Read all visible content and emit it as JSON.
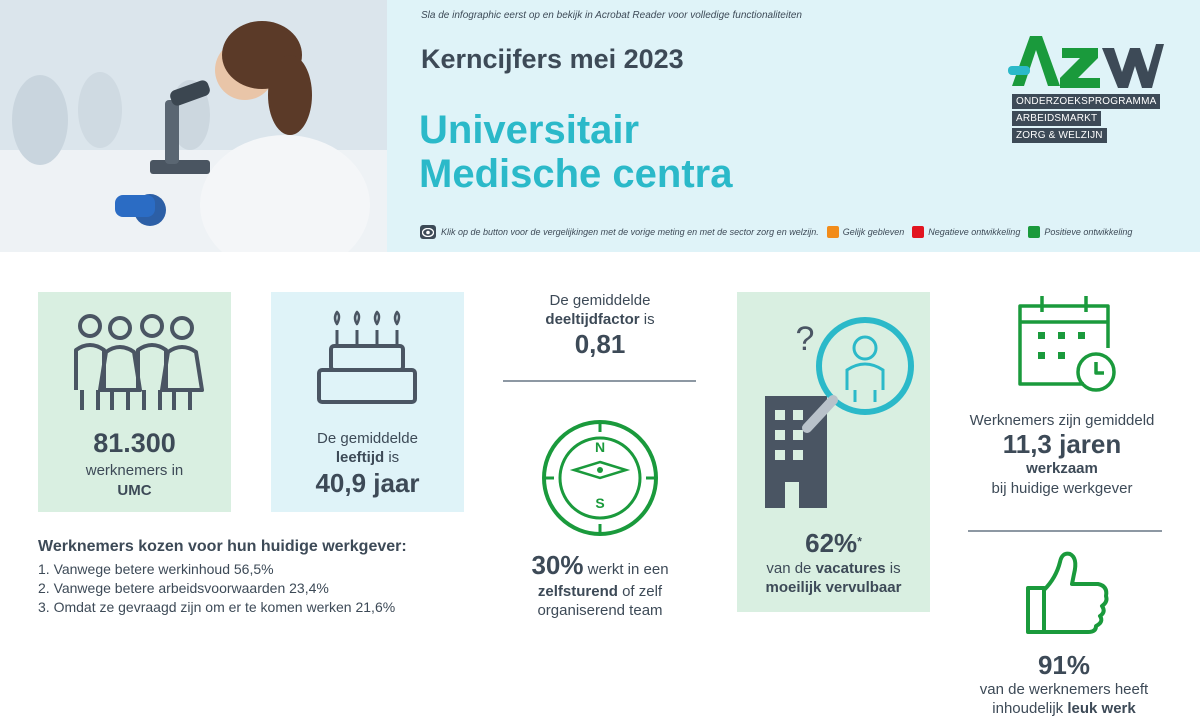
{
  "header": {
    "notice": "Sla de infographic eerst op en bekijk in Acrobat Reader voor volledige functionaliteiten",
    "subtitle": "Kerncijfers mei 2023",
    "title_line1": "Universitair",
    "title_line2": "Medische centra"
  },
  "logo": {
    "wordmark": "AZW",
    "line1": "ONDERZOEKSPROGRAMMA",
    "line2": "ARBEIDSMARKT",
    "line3": "ZORG & WELZIJN"
  },
  "legend": {
    "instruction": "Klik op de button voor de vergelijkingen met de vorige meting en met de sector zorg en welzijn.",
    "items": [
      {
        "label": "Gelijk gebleven",
        "color": "#f28c1a"
      },
      {
        "label": "Negatieve ontwikkeling",
        "color": "#e2141f"
      },
      {
        "label": "Positieve ontwikkeling",
        "color": "#1a9a3c"
      }
    ]
  },
  "colors": {
    "green": "#1a9a3c",
    "teal": "#2bb9c9",
    "navy": "#3d4a57",
    "green_bg": "#d9efe1",
    "cyan_bg": "#dff3f8"
  },
  "employees": {
    "value": "81.300",
    "label1": "werknemers in",
    "label2": "UMC"
  },
  "age": {
    "label1": "De gemiddelde",
    "label2_bold": "leeftijd",
    "label2_rest": " is",
    "value": "40,9 jaar"
  },
  "parttime": {
    "label1": "De gemiddelde",
    "label2_bold": "deeltijdfactor",
    "label2_rest": " is",
    "value": "0,81"
  },
  "selfsteering": {
    "value": "30%",
    "label1_rest": " werkt in een",
    "label2_bold": "zelfsturend",
    "label2_rest": " of zelf",
    "label3": "organiserend team",
    "compass_n": "N",
    "compass_s": "S"
  },
  "vacancies": {
    "value": "62%",
    "footnote": "*",
    "label1": "van de ",
    "label1_bold": "vacatures",
    "label1_rest": " is",
    "label2_bold": "moeilijk vervulbaar"
  },
  "tenure": {
    "label1": "Werknemers zijn gemiddeld",
    "value": "11,3 jaren",
    "label2_bold": "werkzaam",
    "label3": "bij huidige werkgever"
  },
  "enjoy": {
    "value": "91%",
    "label1": "van de werknemers heeft",
    "label2": "inhoudelijk ",
    "label2_bold": "leuk werk"
  },
  "reasons": {
    "title": "Werknemers kozen voor hun huidige werkgever:",
    "items": [
      "1. Vanwege betere werkinhoud 56,5%",
      "2. Vanwege betere arbeidsvoorwaarden 23,4%",
      "3. Omdat ze gevraagd zijn om er te komen werken 21,6%"
    ]
  }
}
